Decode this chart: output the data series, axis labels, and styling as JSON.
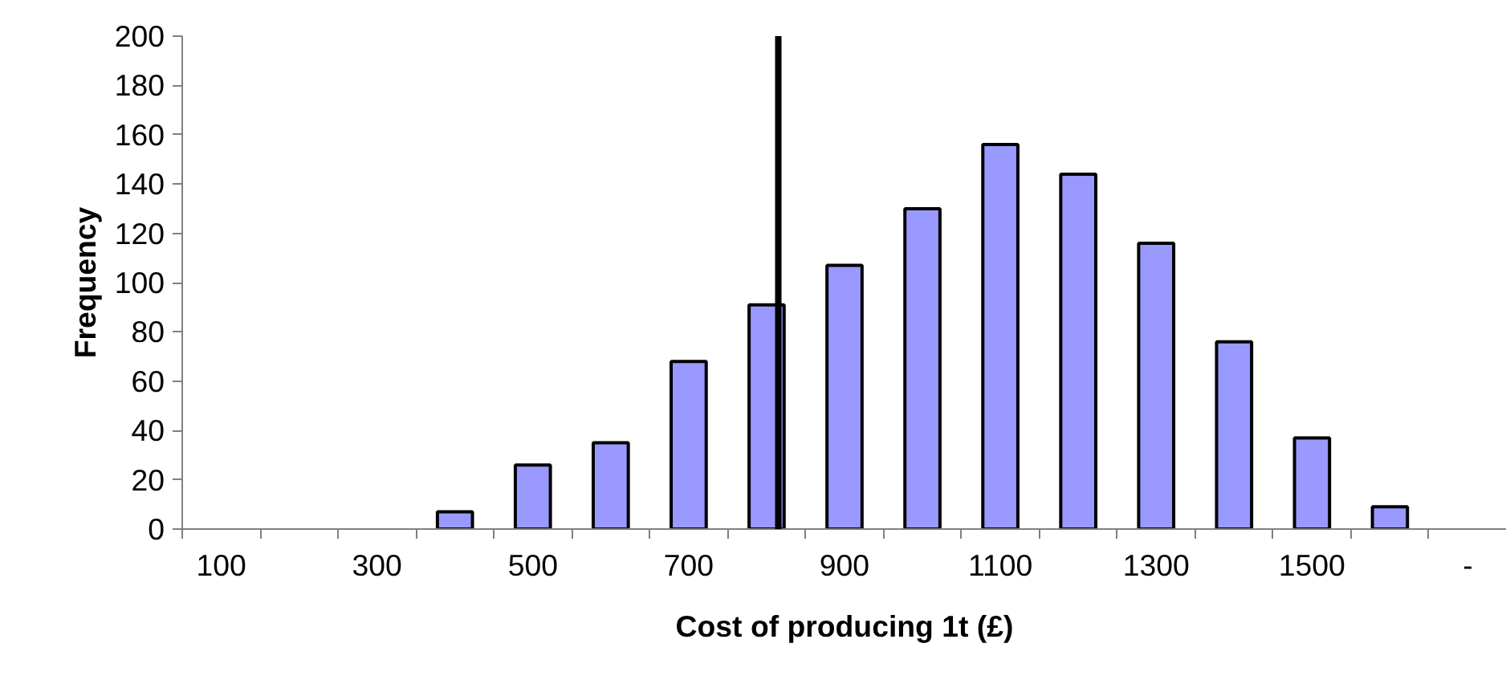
{
  "chart_data": {
    "type": "bar",
    "xlabel": "Cost of producing 1t (£)",
    "ylabel": "Frequency",
    "x": [
      100,
      200,
      300,
      400,
      500,
      600,
      700,
      800,
      900,
      1000,
      1100,
      1200,
      1300,
      1400,
      1500,
      1600,
      1700
    ],
    "values": [
      0,
      0,
      0,
      7,
      26,
      35,
      68,
      91,
      107,
      130,
      156,
      144,
      116,
      76,
      37,
      9,
      0
    ],
    "color": "#9999ff",
    "xlim": [
      50,
      1750
    ],
    "xticks": [
      100,
      300,
      500,
      700,
      900,
      1100,
      1300,
      1500,
      {
        "value": 1700,
        "label": "-"
      }
    ],
    "ylim": [
      0,
      200
    ],
    "yticks": [
      0,
      20,
      40,
      60,
      80,
      100,
      120,
      140,
      160,
      180,
      200
    ],
    "grid": false,
    "ref_lines": [
      {
        "axis": "x",
        "value": 815,
        "color": "#000000"
      }
    ]
  }
}
